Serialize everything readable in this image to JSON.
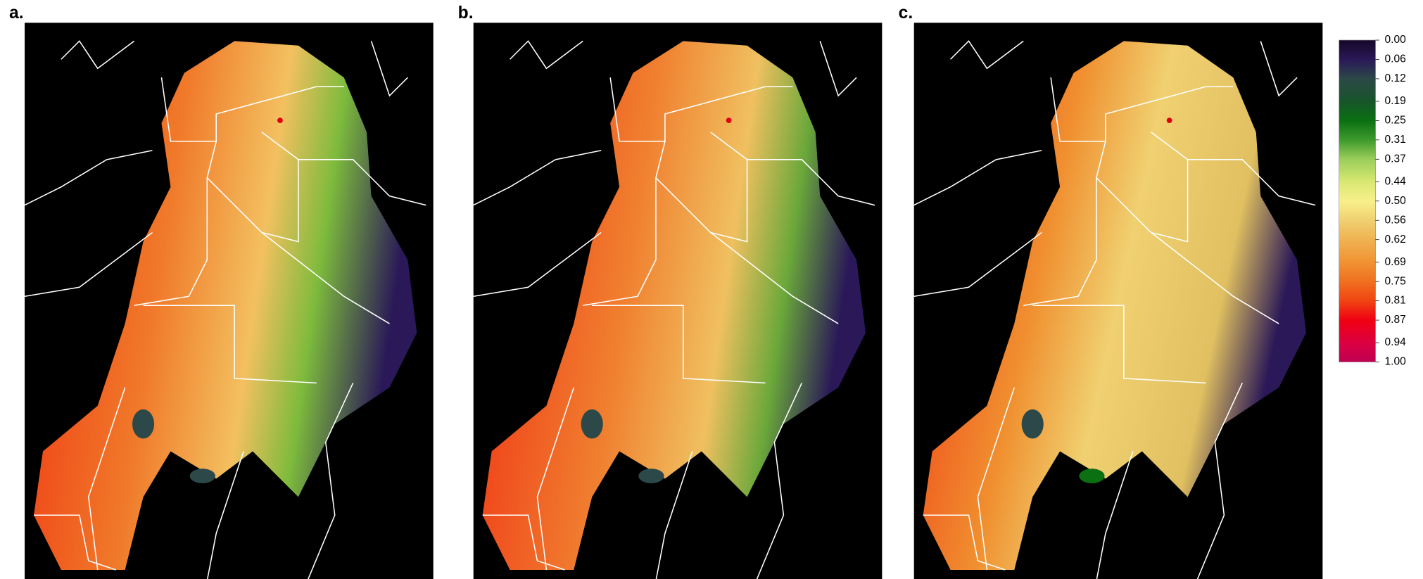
{
  "panels": [
    {
      "label": "a."
    },
    {
      "label": "b."
    },
    {
      "label": "c."
    }
  ],
  "legend": {
    "ticks": [
      {
        "value": 0,
        "label": "0.00"
      },
      {
        "value": 0.06,
        "label": "0.06"
      },
      {
        "value": 0.12,
        "label": "0.12"
      },
      {
        "value": 0.19,
        "label": "0.19"
      },
      {
        "value": 0.25,
        "label": "0.25"
      },
      {
        "value": 0.31,
        "label": "0.31"
      },
      {
        "value": 0.37,
        "label": "0.37"
      },
      {
        "value": 0.44,
        "label": "0.44"
      },
      {
        "value": 0.5,
        "label": "0.50"
      },
      {
        "value": 0.56,
        "label": "0.56"
      },
      {
        "value": 0.62,
        "label": "0.62"
      },
      {
        "value": 0.69,
        "label": "0.69"
      },
      {
        "value": 0.75,
        "label": "0.75"
      },
      {
        "value": 0.81,
        "label": "0.81"
      },
      {
        "value": 0.87,
        "label": "0.87"
      },
      {
        "value": 0.94,
        "label": "0.94"
      },
      {
        "value": 1,
        "label": "1.00"
      }
    ],
    "colors": [
      "#140828",
      "#2a1858",
      "#2c4848",
      "#17552a",
      "#0b7012",
      "#3d9a2c",
      "#9ccd5a",
      "#d8e872",
      "#f8f08a",
      "#f0d070",
      "#f0b252",
      "#f09232",
      "#f07020",
      "#f04412",
      "#f00012",
      "#dc0040",
      "#c00052"
    ]
  }
}
